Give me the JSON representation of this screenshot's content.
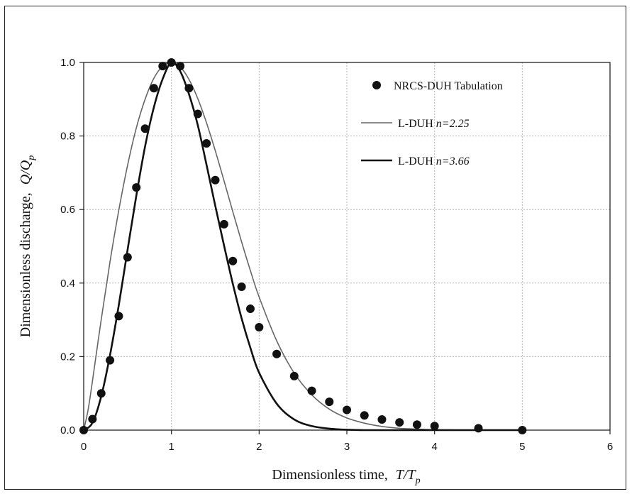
{
  "chart_data": {
    "type": "line",
    "xlabel": "Dimensionless time,",
    "xlabel_var": "T/T",
    "xlabel_sub": "p",
    "ylabel": "Dimensionless discharge,",
    "ylabel_var": "Q/Q",
    "ylabel_sub": "p",
    "xlim": [
      0,
      6
    ],
    "ylim": [
      0,
      1.0
    ],
    "xticks": [
      "0",
      "1",
      "2",
      "3",
      "4",
      "5",
      "6"
    ],
    "yticks": [
      "0.0",
      "0.2",
      "0.4",
      "0.6",
      "0.8",
      "1.0"
    ],
    "grid": true,
    "legend_position": "top-right",
    "legend": {
      "points_name": "NRCS-DUH Tabulation",
      "thin_prefix": "L-DUH ",
      "thin_param": "n=2.25",
      "thick_prefix": "L-DUH ",
      "thick_param": "n=3.66"
    },
    "series": [
      {
        "name": "NRCS-DUH Tabulation",
        "kind": "scatter",
        "x": [
          0,
          0.1,
          0.2,
          0.3,
          0.4,
          0.5,
          0.6,
          0.7,
          0.8,
          0.9,
          1.0,
          1.1,
          1.2,
          1.3,
          1.4,
          1.5,
          1.6,
          1.7,
          1.8,
          1.9,
          2.0,
          2.2,
          2.4,
          2.6,
          2.8,
          3.0,
          3.2,
          3.4,
          3.6,
          3.8,
          4.0,
          4.5,
          5.0
        ],
        "y": [
          0,
          0.03,
          0.1,
          0.19,
          0.31,
          0.47,
          0.66,
          0.82,
          0.93,
          0.99,
          1.0,
          0.99,
          0.93,
          0.86,
          0.78,
          0.68,
          0.56,
          0.46,
          0.39,
          0.33,
          0.28,
          0.207,
          0.147,
          0.107,
          0.077,
          0.055,
          0.04,
          0.029,
          0.021,
          0.015,
          0.011,
          0.005,
          0.0
        ]
      },
      {
        "name": "L-DUH n=2.25",
        "kind": "line",
        "n": 2.25,
        "x": [
          0,
          0.05,
          0.1,
          0.2,
          0.3,
          0.4,
          0.5,
          0.6,
          0.7,
          0.8,
          0.9,
          1.0,
          1.1,
          1.2,
          1.3,
          1.4,
          1.5,
          1.6,
          1.7,
          1.8,
          1.9,
          2.0,
          2.2,
          2.4,
          2.6,
          2.8,
          3.0,
          3.2,
          3.4,
          3.6,
          3.8,
          4.0,
          4.5,
          5.0
        ],
        "y": [
          0,
          0.055,
          0.134,
          0.301,
          0.458,
          0.598,
          0.72,
          0.822,
          0.9,
          0.957,
          0.99,
          1.0,
          0.988,
          0.954,
          0.902,
          0.836,
          0.76,
          0.678,
          0.594,
          0.512,
          0.434,
          0.362,
          0.243,
          0.155,
          0.096,
          0.057,
          0.033,
          0.019,
          0.01,
          0.005,
          0.003,
          0.001,
          0.0,
          0.0
        ]
      },
      {
        "name": "L-DUH n=3.66",
        "kind": "line",
        "n": 3.66,
        "x": [
          0,
          0.1,
          0.2,
          0.3,
          0.4,
          0.5,
          0.6,
          0.7,
          0.8,
          0.9,
          1.0,
          1.1,
          1.2,
          1.3,
          1.4,
          1.5,
          1.6,
          1.7,
          1.8,
          1.9,
          2.0,
          2.2,
          2.4,
          2.6,
          2.8,
          3.0,
          3.2,
          3.5,
          4.0,
          5.0
        ],
        "y": [
          0,
          0.02,
          0.092,
          0.204,
          0.34,
          0.49,
          0.638,
          0.772,
          0.878,
          0.955,
          1.0,
          0.976,
          0.914,
          0.83,
          0.722,
          0.61,
          0.502,
          0.398,
          0.304,
          0.224,
          0.156,
          0.072,
          0.029,
          0.011,
          0.004,
          0.001,
          0.0,
          0.0,
          0.0,
          0.0
        ]
      }
    ]
  }
}
